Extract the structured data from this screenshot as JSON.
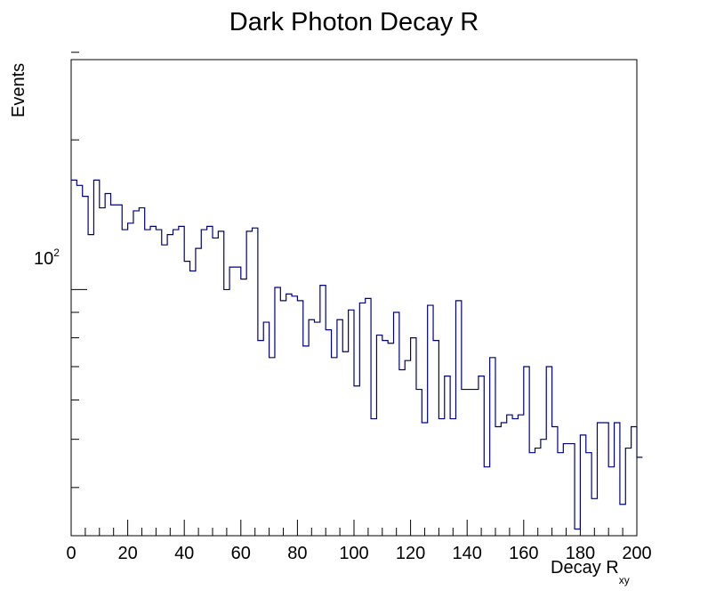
{
  "chart_data": {
    "type": "histogram",
    "title": "Dark Photon Decay R",
    "xlabel": "Decay R",
    "xlabel_subscript": "xy",
    "ylabel": "Events",
    "xlim": [
      0,
      200
    ],
    "ylim": [
      32,
      290
    ],
    "yscale": "log",
    "bin_width": 2,
    "bin_edges_start": 0,
    "series": [
      {
        "name": "Decay R",
        "color": "#000080",
        "values": [
          166,
          162,
          154,
          129,
          166,
          146,
          156,
          148,
          148,
          132,
          136,
          144,
          146,
          132,
          134,
          132,
          123,
          129,
          132,
          134,
          114,
          109,
          121,
          132,
          134,
          127,
          131,
          100,
          111,
          111,
          105,
          131,
          133,
          79,
          86,
          73,
          101,
          95,
          98,
          97,
          95,
          77,
          87,
          86,
          102,
          83,
          73,
          87,
          75,
          91,
          64,
          94,
          96,
          55,
          81,
          79,
          78,
          90,
          69,
          72,
          80,
          63,
          54,
          93,
          79,
          55,
          67,
          55,
          95,
          63,
          63,
          63,
          67,
          44,
          73,
          53,
          54,
          56,
          55,
          56,
          70,
          47,
          48,
          50,
          70,
          53,
          47,
          49,
          49,
          33,
          51,
          47,
          38,
          54,
          54,
          44,
          54,
          37,
          48,
          53,
          46
        ]
      }
    ],
    "x_ticks": [
      "0",
      "20",
      "40",
      "60",
      "80",
      "100",
      "120",
      "140",
      "160",
      "180",
      "200"
    ],
    "x_tick_values": [
      0,
      20,
      40,
      60,
      80,
      100,
      120,
      140,
      160,
      180,
      200
    ],
    "y_tick_label": {
      "base": "10",
      "exponent": "2",
      "value": 100
    },
    "y_minor_ticks": [
      40,
      50,
      60,
      70,
      80,
      90,
      200,
      300
    ]
  }
}
